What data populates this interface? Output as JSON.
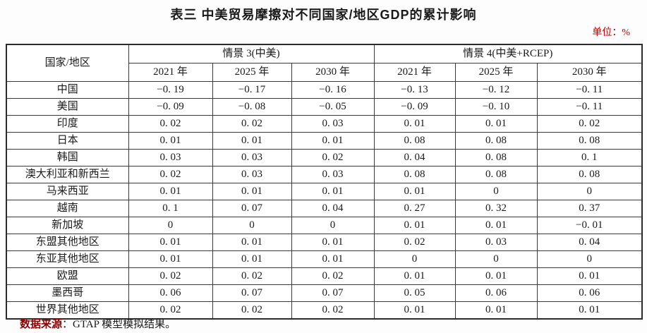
{
  "page": {
    "title": "表三 中美贸易摩擦对不同国家/地区GDP的累计影响",
    "unit_label": "单位：%",
    "source_label": "数据来源",
    "source_text": "：GTAP 模型模拟结果。"
  },
  "table": {
    "corner_header": "国家/地区",
    "groups": [
      {
        "label": "情景 3(中美)",
        "years": [
          "2021 年",
          "2025 年",
          "2030 年"
        ]
      },
      {
        "label": "情景 4(中美+RCEP)",
        "years": [
          "2021 年",
          "2025 年",
          "2030 年"
        ]
      }
    ],
    "rows": [
      {
        "region": "中国",
        "values": [
          "−0. 19",
          "−0. 17",
          "−0. 16",
          "−0. 13",
          "−0. 12",
          "−0. 11"
        ]
      },
      {
        "region": "美国",
        "values": [
          "−0. 09",
          "−0. 08",
          "−0. 05",
          "−0. 09",
          "−0. 10",
          "−0. 11"
        ]
      },
      {
        "region": "印度",
        "values": [
          "0. 02",
          "0. 02",
          "0. 03",
          "0. 01",
          "0. 01",
          "0. 02"
        ]
      },
      {
        "region": "日本",
        "values": [
          "0. 01",
          "0. 01",
          "0. 01",
          "0. 08",
          "0. 08",
          "0. 08"
        ]
      },
      {
        "region": "韩国",
        "values": [
          "0. 03",
          "0. 03",
          "0. 02",
          "0. 04",
          "0. 08",
          "0. 1"
        ]
      },
      {
        "region": "澳大利亚和新西兰",
        "values": [
          "0. 02",
          "0. 03",
          "0. 03",
          "0. 08",
          "0. 08",
          "0. 08"
        ]
      },
      {
        "region": "马来西亚",
        "values": [
          "0. 01",
          "0. 01",
          "0. 01",
          "0. 01",
          "0",
          "0"
        ]
      },
      {
        "region": "越南",
        "values": [
          "0. 1",
          "0. 07",
          "0. 04",
          "0. 27",
          "0. 32",
          "0. 37"
        ]
      },
      {
        "region": "新加坡",
        "values": [
          "0",
          "0",
          "0",
          "0. 01",
          "0. 01",
          "−0. 01"
        ]
      },
      {
        "region": "东盟其他地区",
        "values": [
          "0. 01",
          "0. 01",
          "0. 01",
          "0. 02",
          "0. 03",
          "0. 04"
        ]
      },
      {
        "region": "东亚其他地区",
        "values": [
          "0. 01",
          "0. 01",
          "0. 01",
          "0",
          "0",
          "0"
        ]
      },
      {
        "region": "欧盟",
        "values": [
          "0. 02",
          "0. 02",
          "0. 02",
          "0. 01",
          "0. 01",
          "0. 01"
        ]
      },
      {
        "region": "墨西哥",
        "values": [
          "0. 06",
          "0. 07",
          "0. 07",
          "0. 05",
          "0. 06",
          "0. 06"
        ]
      },
      {
        "region": "世界其他地区",
        "values": [
          "0. 02",
          "0. 02",
          "0. 02",
          "0. 01",
          "0. 01",
          "0. 01"
        ]
      }
    ]
  }
}
